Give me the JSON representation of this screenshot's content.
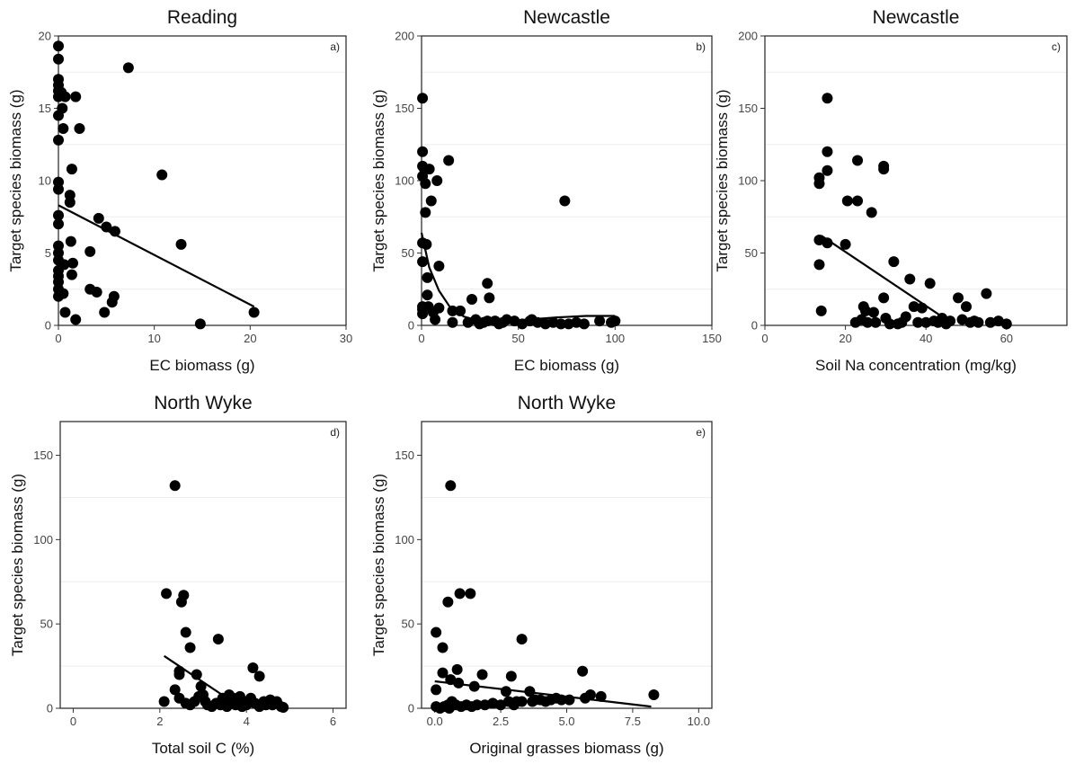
{
  "chart_data": [
    {
      "type": "scatter",
      "title": "Reading",
      "panel_label": "a)",
      "xlabel": "EC biomass (g)",
      "ylabel": "Target species biomass (g)",
      "xlim": [
        0,
        30
      ],
      "ylim": [
        0,
        20
      ],
      "xticks": [
        0,
        10,
        20,
        30
      ],
      "yticks": [
        0,
        5,
        10,
        15,
        20
      ],
      "grid": true,
      "points": [
        [
          0,
          19.3
        ],
        [
          0,
          18.4
        ],
        [
          0,
          17.0
        ],
        [
          0,
          16.6
        ],
        [
          0,
          16.2
        ],
        [
          0,
          15.8
        ],
        [
          0,
          14.5
        ],
        [
          0,
          12.8
        ],
        [
          0,
          9.9
        ],
        [
          0,
          9.4
        ],
        [
          0,
          7.6
        ],
        [
          0,
          7.0
        ],
        [
          0,
          5.5
        ],
        [
          0,
          5.0
        ],
        [
          0,
          4.5
        ],
        [
          0,
          3.8
        ],
        [
          0,
          3.4
        ],
        [
          0,
          3.0
        ],
        [
          0,
          2.5
        ],
        [
          0,
          2.0
        ],
        [
          0.3,
          16.1
        ],
        [
          0.4,
          15.0
        ],
        [
          0.5,
          13.6
        ],
        [
          0.7,
          15.8
        ],
        [
          0.6,
          4.2
        ],
        [
          0.5,
          2.2
        ],
        [
          0.7,
          0.9
        ],
        [
          1.2,
          8.5
        ],
        [
          1.2,
          9.0
        ],
        [
          1.4,
          10.8
        ],
        [
          1.3,
          5.8
        ],
        [
          1.5,
          4.3
        ],
        [
          1.4,
          3.5
        ],
        [
          1.8,
          15.8
        ],
        [
          2.2,
          13.6
        ],
        [
          1.8,
          0.4
        ],
        [
          3.3,
          5.1
        ],
        [
          3.3,
          2.5
        ],
        [
          4.0,
          2.3
        ],
        [
          4.2,
          7.4
        ],
        [
          4.8,
          0.9
        ],
        [
          5.0,
          6.8
        ],
        [
          5.6,
          1.6
        ],
        [
          5.8,
          2.0
        ],
        [
          5.9,
          6.5
        ],
        [
          7.3,
          17.8
        ],
        [
          10.8,
          10.4
        ],
        [
          12.8,
          5.6
        ],
        [
          14.8,
          0.1
        ],
        [
          20.4,
          0.9
        ]
      ],
      "fit": {
        "kind": "linear",
        "x": [
          0,
          20.4
        ],
        "y": [
          8.3,
          1.3
        ]
      }
    },
    {
      "type": "scatter",
      "title": "Newcastle",
      "panel_label": "b)",
      "xlabel": "EC biomass (g)",
      "ylabel": "Target species biomass (g)",
      "xlim": [
        0,
        150
      ],
      "ylim": [
        0,
        200
      ],
      "xticks": [
        0,
        50,
        100,
        150
      ],
      "yticks": [
        0,
        50,
        100,
        150,
        200
      ],
      "grid": true,
      "points": [
        [
          0.5,
          157
        ],
        [
          0.5,
          120
        ],
        [
          0.5,
          110
        ],
        [
          0.5,
          103
        ],
        [
          0.5,
          57
        ],
        [
          0.5,
          44
        ],
        [
          0.5,
          13
        ],
        [
          0.5,
          11
        ],
        [
          0.5,
          8
        ],
        [
          1.5,
          108
        ],
        [
          2,
          98
        ],
        [
          2,
          78
        ],
        [
          2.5,
          56
        ],
        [
          3,
          33
        ],
        [
          3,
          21
        ],
        [
          3.5,
          13
        ],
        [
          4,
          108
        ],
        [
          5,
          86
        ],
        [
          6,
          9
        ],
        [
          7,
          4
        ],
        [
          8,
          100
        ],
        [
          9,
          12
        ],
        [
          9,
          41
        ],
        [
          14,
          114
        ],
        [
          16,
          10
        ],
        [
          16,
          2
        ],
        [
          20,
          10
        ],
        [
          24,
          2
        ],
        [
          26,
          18
        ],
        [
          28,
          4
        ],
        [
          30,
          1
        ],
        [
          32,
          2
        ],
        [
          34,
          3
        ],
        [
          34,
          29
        ],
        [
          35,
          19
        ],
        [
          38,
          3
        ],
        [
          40,
          1
        ],
        [
          42,
          2
        ],
        [
          44,
          4
        ],
        [
          48,
          3
        ],
        [
          52,
          1
        ],
        [
          56,
          3
        ],
        [
          57,
          4
        ],
        [
          60,
          2
        ],
        [
          64,
          1
        ],
        [
          68,
          2
        ],
        [
          72,
          1
        ],
        [
          74,
          86
        ],
        [
          76,
          1
        ],
        [
          80,
          2
        ],
        [
          84,
          1
        ],
        [
          92,
          3
        ],
        [
          98,
          2
        ],
        [
          100,
          3
        ]
      ],
      "fit": {
        "kind": "nonlinear",
        "x": [
          0,
          4,
          9,
          15,
          22,
          30,
          40,
          55,
          70,
          85,
          100
        ],
        "y": [
          64,
          40,
          24,
          12,
          6,
          3,
          2.5,
          4,
          5.5,
          6.5,
          6.5
        ]
      }
    },
    {
      "type": "scatter",
      "title": "Newcastle",
      "panel_label": "c)",
      "xlabel": "Soil Na concentration (mg/kg)",
      "ylabel": "Target species biomass (g)",
      "xlim": [
        0,
        75
      ],
      "ylim": [
        0,
        200
      ],
      "xticks": [
        0,
        20,
        40,
        60
      ],
      "yticks": [
        0,
        50,
        100,
        150,
        200
      ],
      "grid": true,
      "points": [
        [
          13.5,
          102
        ],
        [
          13.5,
          98
        ],
        [
          13.5,
          59
        ],
        [
          13.5,
          42
        ],
        [
          14,
          10
        ],
        [
          15.5,
          157
        ],
        [
          15.5,
          120
        ],
        [
          15.5,
          107
        ],
        [
          15.5,
          57
        ],
        [
          20,
          56
        ],
        [
          20.5,
          86
        ],
        [
          22.5,
          2
        ],
        [
          23,
          114
        ],
        [
          23,
          86
        ],
        [
          24,
          4
        ],
        [
          24.5,
          13
        ],
        [
          25,
          10
        ],
        [
          25.5,
          2
        ],
        [
          26.5,
          78
        ],
        [
          27,
          9
        ],
        [
          27.5,
          2
        ],
        [
          29.5,
          110
        ],
        [
          29.5,
          108
        ],
        [
          29.5,
          19
        ],
        [
          30,
          5
        ],
        [
          31,
          1
        ],
        [
          32,
          44
        ],
        [
          33,
          1
        ],
        [
          34,
          2
        ],
        [
          35,
          6
        ],
        [
          36,
          32
        ],
        [
          37,
          13
        ],
        [
          38,
          2
        ],
        [
          39,
          12
        ],
        [
          40,
          2
        ],
        [
          41,
          29
        ],
        [
          42,
          3
        ],
        [
          43,
          2
        ],
        [
          44,
          5
        ],
        [
          45,
          1
        ],
        [
          46,
          3
        ],
        [
          48,
          19
        ],
        [
          49,
          4
        ],
        [
          50,
          13
        ],
        [
          51,
          2
        ],
        [
          52,
          3
        ],
        [
          53,
          2
        ],
        [
          55,
          22
        ],
        [
          56,
          2
        ],
        [
          58,
          3
        ],
        [
          60,
          1
        ]
      ],
      "fit": {
        "kind": "linear",
        "x": [
          14,
          44
        ],
        "y": [
          62,
          6
        ]
      }
    },
    {
      "type": "scatter",
      "title": "North Wyke",
      "panel_label": "d)",
      "xlabel": "Total soil C (%)",
      "ylabel": "Target species biomass (g)",
      "xlim": [
        -0.3,
        6.3
      ],
      "ylim": [
        0,
        170
      ],
      "xticks": [
        0,
        2,
        4,
        6
      ],
      "yticks": [
        0,
        50,
        100,
        150
      ],
      "grid": true,
      "points": [
        [
          2.35,
          132
        ],
        [
          2.15,
          68
        ],
        [
          2.5,
          63
        ],
        [
          2.55,
          67
        ],
        [
          2.6,
          45
        ],
        [
          2.7,
          36
        ],
        [
          3.35,
          41
        ],
        [
          2.1,
          4
        ],
        [
          2.35,
          11
        ],
        [
          2.45,
          22
        ],
        [
          2.45,
          20
        ],
        [
          2.45,
          6
        ],
        [
          2.6,
          3
        ],
        [
          2.7,
          2
        ],
        [
          2.8,
          4
        ],
        [
          2.85,
          20
        ],
        [
          2.9,
          7
        ],
        [
          2.95,
          13
        ],
        [
          3.0,
          8
        ],
        [
          3.05,
          4
        ],
        [
          3.1,
          2
        ],
        [
          3.2,
          1
        ],
        [
          3.3,
          3
        ],
        [
          3.4,
          2
        ],
        [
          3.45,
          6
        ],
        [
          3.5,
          5
        ],
        [
          3.55,
          1
        ],
        [
          3.6,
          8
        ],
        [
          3.7,
          6
        ],
        [
          3.75,
          2
        ],
        [
          3.8,
          3
        ],
        [
          3.85,
          7
        ],
        [
          3.9,
          1
        ],
        [
          3.95,
          4
        ],
        [
          4.0,
          2
        ],
        [
          4.1,
          6
        ],
        [
          4.15,
          24
        ],
        [
          4.2,
          3
        ],
        [
          4.3,
          19
        ],
        [
          4.3,
          1
        ],
        [
          4.4,
          4
        ],
        [
          4.45,
          2
        ],
        [
          4.55,
          5
        ],
        [
          4.6,
          2
        ],
        [
          4.7,
          4
        ],
        [
          4.8,
          1
        ],
        [
          4.85,
          0.5
        ]
      ],
      "fit": {
        "kind": "linear",
        "x": [
          2.1,
          3.9
        ],
        "y": [
          31,
          0
        ]
      }
    },
    {
      "type": "scatter",
      "title": "North Wyke",
      "panel_label": "e)",
      "xlabel": "Original grasses biomass (g)",
      "ylabel": "Target species biomass (g)",
      "xlim": [
        -0.5,
        10.5
      ],
      "ylim": [
        0,
        170
      ],
      "xticks": [
        0.0,
        2.5,
        5.0,
        7.5,
        10.0
      ],
      "xtick_labels": [
        "0.0",
        "2.5",
        "5.0",
        "7.5",
        "10.0"
      ],
      "yticks": [
        0,
        50,
        100,
        150
      ],
      "grid": true,
      "points": [
        [
          0.6,
          132
        ],
        [
          0.95,
          68
        ],
        [
          1.35,
          68
        ],
        [
          0.5,
          63
        ],
        [
          0.05,
          45
        ],
        [
          3.3,
          41
        ],
        [
          0.3,
          36
        ],
        [
          0.85,
          23
        ],
        [
          0.3,
          21
        ],
        [
          0.6,
          17
        ],
        [
          0.05,
          11
        ],
        [
          0.05,
          1
        ],
        [
          0.2,
          0
        ],
        [
          0.35,
          1
        ],
        [
          0.5,
          2
        ],
        [
          0.55,
          0
        ],
        [
          0.65,
          4
        ],
        [
          0.8,
          2
        ],
        [
          0.9,
          15
        ],
        [
          1.0,
          1
        ],
        [
          1.2,
          2
        ],
        [
          1.4,
          1
        ],
        [
          1.5,
          13
        ],
        [
          1.6,
          2
        ],
        [
          1.8,
          20
        ],
        [
          1.9,
          2
        ],
        [
          2.2,
          3
        ],
        [
          2.5,
          2
        ],
        [
          2.7,
          10
        ],
        [
          2.8,
          4
        ],
        [
          2.9,
          19
        ],
        [
          3.0,
          2
        ],
        [
          3.1,
          4
        ],
        [
          3.3,
          4
        ],
        [
          3.6,
          10
        ],
        [
          3.7,
          4
        ],
        [
          3.8,
          5
        ],
        [
          4.0,
          5
        ],
        [
          4.2,
          4
        ],
        [
          4.4,
          5
        ],
        [
          4.6,
          6
        ],
        [
          4.8,
          5
        ],
        [
          5.1,
          5
        ],
        [
          5.6,
          22
        ],
        [
          5.7,
          6
        ],
        [
          5.9,
          8
        ],
        [
          6.3,
          7
        ],
        [
          8.3,
          8
        ]
      ],
      "fit": {
        "kind": "linear",
        "x": [
          0.0,
          8.2
        ],
        "y": [
          16,
          1
        ]
      }
    }
  ]
}
